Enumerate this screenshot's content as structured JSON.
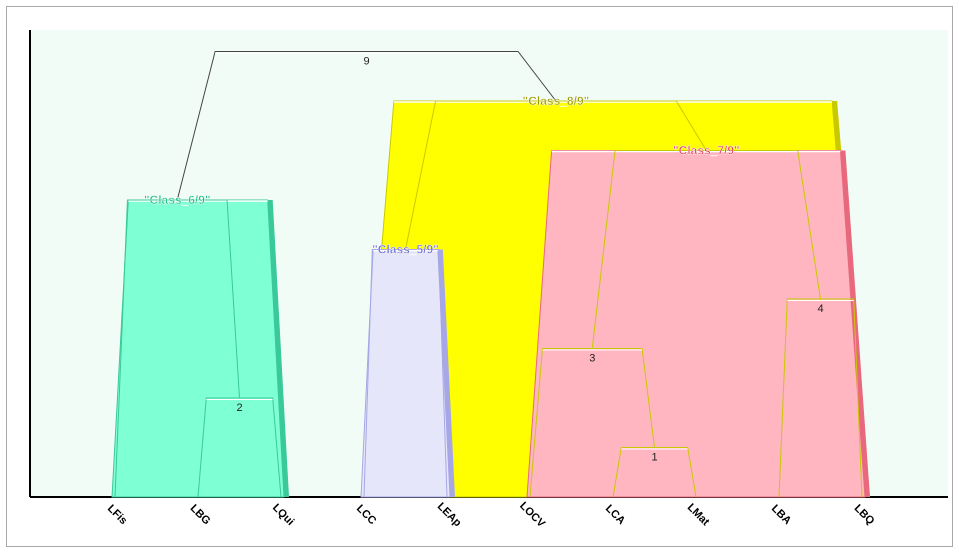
{
  "chart_data": {
    "type": "dendrogram",
    "leaves": [
      "LFis",
      "LBG",
      "LQui",
      "LCC",
      "LEAp",
      "LOCV",
      "LCA",
      "LMat",
      "LBA",
      "LBQ"
    ],
    "nodes": [
      {
        "id": 1,
        "label": "1",
        "left": "LCA",
        "right": "LMat",
        "height": 1
      },
      {
        "id": 2,
        "label": "2",
        "left": "LBG",
        "right": "LQui",
        "height": 2
      },
      {
        "id": 3,
        "label": "3",
        "left": "LOCV",
        "right": "node1",
        "height": 3
      },
      {
        "id": 4,
        "label": "4",
        "left": "LBA",
        "right": "LBQ",
        "height": 4
      },
      {
        "id": 5,
        "label": "\"Class_5/9\"",
        "left": "LCC",
        "right": "LEAp",
        "height": 5
      },
      {
        "id": 6,
        "label": "\"Class_6/9\"",
        "left": "LFis",
        "right": "node2",
        "height": 6
      },
      {
        "id": 7,
        "label": "\"Class_7/9\"",
        "left": "node3",
        "right": "node4",
        "height": 7
      },
      {
        "id": 8,
        "label": "\"Class_8/9\"",
        "left": "node5",
        "right": "node7",
        "height": 8
      },
      {
        "id": 9,
        "label": "9",
        "left": "node6",
        "right": "node8",
        "height": 9
      }
    ],
    "classes": [
      {
        "node": 6,
        "name": "\"Class_6/9\"",
        "color": "#7fffd4",
        "edge": "#3ac99a",
        "text": "#1ec08a"
      },
      {
        "node": 5,
        "name": "\"Class_5/9\"",
        "color": "#e6e6fa",
        "edge": "#a7a7e6",
        "text": "#6a6ad0"
      },
      {
        "node": 8,
        "name": "\"Class_8/9\"",
        "color": "#ffff00",
        "edge": "#c9c900",
        "text": "#9a9a00"
      },
      {
        "node": 7,
        "name": "\"Class_7/9\"",
        "color": "#ffb6c1",
        "edge": "#e8697d",
        "text": "#e8445e"
      }
    ],
    "background_color": "#f2fcf7"
  }
}
